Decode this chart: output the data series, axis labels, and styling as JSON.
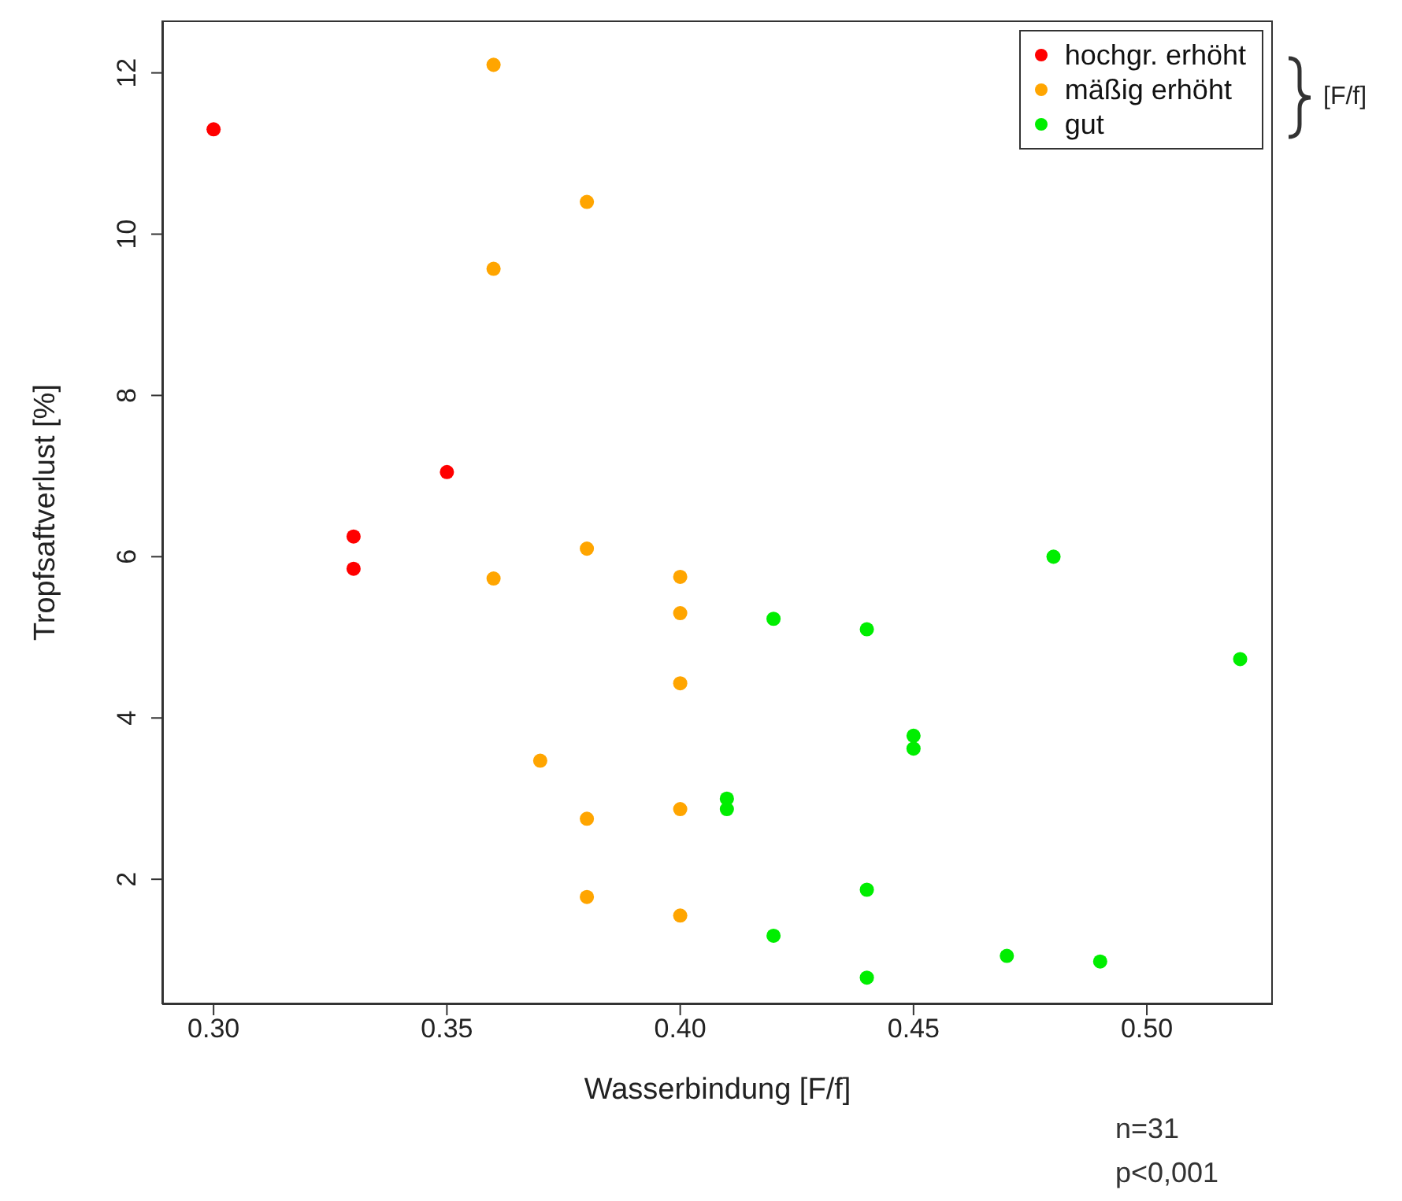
{
  "chart_data": {
    "type": "scatter",
    "xlabel": "Wasserbindung [F/f]",
    "ylabel": "Tropfsaftverlust [%]",
    "xlim": [
      0.289,
      0.527
    ],
    "ylim": [
      0.45,
      12.65
    ],
    "xticks": [
      {
        "value": 0.3,
        "label": "0.30"
      },
      {
        "value": 0.35,
        "label": "0.35"
      },
      {
        "value": 0.4,
        "label": "0.40"
      },
      {
        "value": 0.45,
        "label": "0.45"
      },
      {
        "value": 0.5,
        "label": "0.50"
      }
    ],
    "yticks": [
      2,
      4,
      6,
      8,
      10,
      12
    ],
    "grid": false,
    "legend": "top right",
    "marker": "circle",
    "annotations": [
      "[F/f]",
      "n=31",
      "p<0,001"
    ],
    "series": [
      {
        "name": "hochgr. erhöht",
        "color": "#ff0000",
        "x": [
          0.3,
          0.33,
          0.33,
          0.35
        ],
        "values": [
          11.3,
          6.25,
          5.85,
          7.05
        ]
      },
      {
        "name": "mäßig erhöht",
        "color": "#ffa500",
        "x": [
          0.36,
          0.38,
          0.36,
          0.36,
          0.38,
          0.4,
          0.4,
          0.4,
          0.37,
          0.38,
          0.4,
          0.38,
          0.4
        ],
        "values": [
          12.1,
          10.4,
          9.57,
          5.73,
          6.1,
          5.75,
          5.3,
          4.43,
          3.47,
          2.75,
          2.87,
          1.78,
          1.55
        ]
      },
      {
        "name": "gut",
        "color": "#00ee00",
        "x": [
          0.48,
          0.42,
          0.44,
          0.52,
          0.45,
          0.45,
          0.41,
          0.41,
          0.44,
          0.42,
          0.47,
          0.49,
          0.44
        ],
        "values": [
          6.0,
          5.23,
          5.1,
          4.73,
          3.78,
          3.62,
          3.0,
          2.87,
          1.87,
          1.3,
          1.05,
          0.98,
          0.78
        ]
      }
    ]
  }
}
